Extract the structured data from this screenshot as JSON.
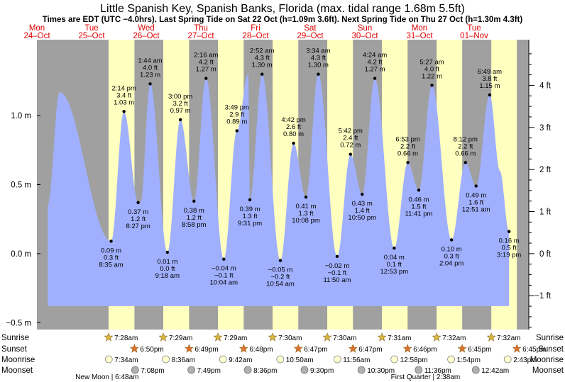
{
  "title": "Little Spanish Key, Spanish Banks, Florida (max. tidal range 1.68m 5.5ft)",
  "subtitle": "Times are EDT (UTC −4.0hrs). Last Spring Tide on Sat 22 Oct (h=1.09m 3.6ft). Next Spring Tide on Thu 27 Oct (h=1.30m 4.3ft)",
  "colors": {
    "night": "#a0a0a0",
    "day": "#ffffc0",
    "tide": "#a0b0ff",
    "labels": "#e00000",
    "sun_star": "#d8b840",
    "sunset_star": "#e07030",
    "moon": "#ffffd0",
    "moonset": "#b0b0b0"
  },
  "days": [
    {
      "dow": "Mon",
      "date": "24–Oct"
    },
    {
      "dow": "Tue",
      "date": "25–Oct"
    },
    {
      "dow": "Wed",
      "date": "26–Oct"
    },
    {
      "dow": "Thu",
      "date": "27–Oct"
    },
    {
      "dow": "Fri",
      "date": "28–Oct"
    },
    {
      "dow": "Sat",
      "date": "29–Oct"
    },
    {
      "dow": "Sun",
      "date": "30–Oct"
    },
    {
      "dow": "Mon",
      "date": "31–Oct"
    },
    {
      "dow": "Tue",
      "date": "01–Nov"
    }
  ],
  "chart_data": {
    "type": "area",
    "title": "Little Spanish Key, Spanish Banks, Florida (max. tidal range 1.68m 5.5ft)",
    "xlabel": "Date/time (EDT)",
    "ylabel_left": "m",
    "ylabel_right": "ft",
    "x_range_hours": [
      0,
      216
    ],
    "y_range_m": [
      -0.55,
      1.55
    ],
    "left_ticks": [
      "−0.5 m",
      "0.0 m",
      "0.5 m",
      "1.0 m"
    ],
    "left_tick_values": [
      -0.5,
      0.0,
      0.5,
      1.0
    ],
    "right_ticks": [
      "−1 ft",
      "0 ft",
      "1 ft",
      "2 ft",
      "3 ft",
      "4 ft"
    ],
    "right_tick_values_ft": [
      -1,
      0,
      1,
      2,
      3,
      4
    ],
    "series_start": {
      "hour": 4.7,
      "height_m": 0.35
    },
    "series_end": {
      "hour": 203.3,
      "height_m": 0.6
    },
    "extra_extremes": [
      {
        "hour": 10.0,
        "height_m": 1.17
      },
      {
        "hour": 45.5,
        "height_m": 0.37
      },
      {
        "hour": 92.8,
        "height_m": 1.3
      }
    ],
    "extremes": [
      {
        "time": "8:35 am",
        "hour": 32.58,
        "height_m": 0.09,
        "m": "0.09 m",
        "ft": "0.3 ft",
        "type": "low"
      },
      {
        "time": "2:14 pm",
        "hour": 38.23,
        "height_m": 1.03,
        "m": "1.03 m",
        "ft": "3.4 ft",
        "type": "high"
      },
      {
        "time": "8:27 pm",
        "hour": 44.45,
        "height_m": 0.37,
        "m": "0.37 m",
        "ft": "1.2 ft",
        "type": "low"
      },
      {
        "time": "1:44 am",
        "hour": 49.73,
        "height_m": 1.23,
        "m": "1.23 m",
        "ft": "4.0 ft",
        "type": "high"
      },
      {
        "time": "9:18 am",
        "hour": 57.3,
        "height_m": 0.01,
        "m": "0.01 m",
        "ft": "0.0 ft",
        "type": "low"
      },
      {
        "time": "3:00 pm",
        "hour": 63.0,
        "height_m": 0.97,
        "m": "0.97 m",
        "ft": "3.2 ft",
        "type": "high"
      },
      {
        "time": "8:58 pm",
        "hour": 68.97,
        "height_m": 0.38,
        "m": "0.38 m",
        "ft": "1.2 ft",
        "type": "low"
      },
      {
        "time": "2:16 am",
        "hour": 74.27,
        "height_m": 1.27,
        "m": "1.27 m",
        "ft": "4.2 ft",
        "type": "high"
      },
      {
        "time": "10:04 am",
        "hour": 82.07,
        "height_m": -0.04,
        "m": "−0.04 m",
        "ft": "−0.1 ft",
        "type": "low"
      },
      {
        "time": "3:49 pm",
        "hour": 87.82,
        "height_m": 0.89,
        "m": "0.89 m",
        "ft": "2.9 ft",
        "type": "high"
      },
      {
        "time": "9:31 pm",
        "hour": 93.52,
        "height_m": 0.39,
        "m": "0.39 m",
        "ft": "1.3 ft",
        "type": "low"
      },
      {
        "time": "2:52 am",
        "hour": 98.87,
        "height_m": 1.3,
        "m": "1.30 m",
        "ft": "4.3 ft",
        "type": "high"
      },
      {
        "time": "10:54 am",
        "hour": 106.9,
        "height_m": -0.05,
        "m": "−0.05 m",
        "ft": "−0.2 ft",
        "type": "low"
      },
      {
        "time": "4:42 pm",
        "hour": 112.7,
        "height_m": 0.8,
        "m": "0.80 m",
        "ft": "2.6 ft",
        "type": "high"
      },
      {
        "time": "10:08 pm",
        "hour": 118.13,
        "height_m": 0.41,
        "m": "0.41 m",
        "ft": "1.3 ft",
        "type": "low"
      },
      {
        "time": "3:34 am",
        "hour": 123.57,
        "height_m": 1.3,
        "m": "1.30 m",
        "ft": "4.3 ft",
        "type": "high"
      },
      {
        "time": "11:50 am",
        "hour": 131.83,
        "height_m": -0.02,
        "m": "−0.02 m",
        "ft": "−0.1 ft",
        "type": "low"
      },
      {
        "time": "5:42 pm",
        "hour": 137.7,
        "height_m": 0.72,
        "m": "0.72 m",
        "ft": "2.4 ft",
        "type": "high"
      },
      {
        "time": "10:50 pm",
        "hour": 142.83,
        "height_m": 0.43,
        "m": "0.43 m",
        "ft": "1.4 ft",
        "type": "low"
      },
      {
        "time": "4:24 am",
        "hour": 148.4,
        "height_m": 1.27,
        "m": "1.27 m",
        "ft": "4.2 ft",
        "type": "high"
      },
      {
        "time": "12:53 pm",
        "hour": 156.88,
        "height_m": 0.04,
        "m": "0.04 m",
        "ft": "0.1 ft",
        "type": "low"
      },
      {
        "time": "6:53 pm",
        "hour": 162.88,
        "height_m": 0.66,
        "m": "0.66 m",
        "ft": "2.2 ft",
        "type": "high"
      },
      {
        "time": "11:41 pm",
        "hour": 167.68,
        "height_m": 0.46,
        "m": "0.46 m",
        "ft": "1.5 ft",
        "type": "low"
      },
      {
        "time": "5:27 am",
        "hour": 173.45,
        "height_m": 1.22,
        "m": "1.22 m",
        "ft": "4.0 ft",
        "type": "high"
      },
      {
        "time": "2:04 pm",
        "hour": 182.07,
        "height_m": 0.1,
        "m": "0.10 m",
        "ft": "0.3 ft",
        "type": "low"
      },
      {
        "time": "8:12 pm",
        "hour": 188.2,
        "height_m": 0.66,
        "m": "0.66 m",
        "ft": "2.2 ft",
        "type": "high"
      },
      {
        "time": "12:51 am",
        "hour": 192.85,
        "height_m": 0.49,
        "m": "0.49 m",
        "ft": "1.6 ft",
        "type": "low"
      },
      {
        "time": "6:49 am",
        "hour": 198.82,
        "height_m": 1.15,
        "m": "1.15 m",
        "ft": "3.8 ft",
        "type": "high"
      },
      {
        "time": "3:19 pm",
        "hour": 207.32,
        "height_m": 0.16,
        "m": "0.16 m",
        "ft": "0.5 ft",
        "type": "low"
      }
    ]
  },
  "rows": {
    "labels": [
      "Sunrise",
      "Sunset",
      "Moonrise",
      "Moonset"
    ],
    "sunrise": [
      {
        "time": "7:28am",
        "hour": 31.47
      },
      {
        "time": "7:29am",
        "hour": 55.48
      },
      {
        "time": "7:29am",
        "hour": 79.48
      },
      {
        "time": "7:30am",
        "hour": 103.5
      },
      {
        "time": "7:30am",
        "hour": 127.5
      },
      {
        "time": "7:31am",
        "hour": 151.52
      },
      {
        "time": "7:32am",
        "hour": 175.53
      },
      {
        "time": "7:32am",
        "hour": 199.53
      }
    ],
    "sunset": [
      {
        "time": "6:50pm",
        "hour": 42.83
      },
      {
        "time": "6:49pm",
        "hour": 66.82
      },
      {
        "time": "6:48pm",
        "hour": 90.8
      },
      {
        "time": "6:47pm",
        "hour": 114.78
      },
      {
        "time": "6:47pm",
        "hour": 138.78
      },
      {
        "time": "6:46pm",
        "hour": 162.77
      },
      {
        "time": "6:45pm",
        "hour": 186.75
      },
      {
        "time": "6:45pm",
        "hour": 210.75
      }
    ],
    "moonrise": [
      {
        "time": "7:34am",
        "hour": 31.57
      },
      {
        "time": "8:36am",
        "hour": 56.6
      },
      {
        "time": "9:42am",
        "hour": 81.7
      },
      {
        "time": "10:50am",
        "hour": 106.83
      },
      {
        "time": "11:56am",
        "hour": 131.93
      },
      {
        "time": "12:58pm",
        "hour": 156.97
      },
      {
        "time": "1:54pm",
        "hour": 181.9
      },
      {
        "time": "2:43pm",
        "hour": 206.72
      }
    ],
    "moonset": [
      {
        "time": "7:08pm",
        "hour": 43.13
      },
      {
        "time": "7:49pm",
        "hour": 67.82
      },
      {
        "time": "8:36pm",
        "hour": 92.6
      },
      {
        "time": "9:30pm",
        "hour": 117.5
      },
      {
        "time": "10:30pm",
        "hour": 142.5
      },
      {
        "time": "11:36pm",
        "hour": 167.6
      },
      {
        "time": "12:42am",
        "hour": 192.7
      }
    ],
    "moon_phases": [
      {
        "text": "New Moon | 6:48am",
        "hour": 30.8
      },
      {
        "text": "First Quarter | 2:38am",
        "hour": 170.63
      }
    ]
  }
}
